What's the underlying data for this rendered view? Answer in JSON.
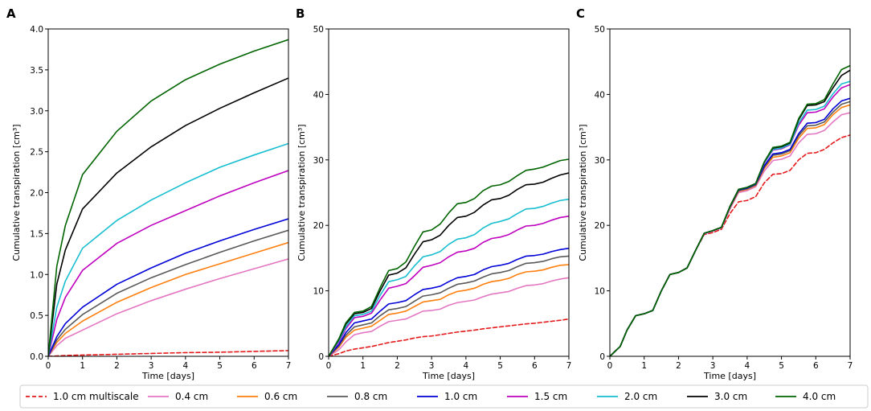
{
  "chart_data": [
    {
      "panel": "A",
      "type": "line",
      "xlabel": "Time [days]",
      "ylabel": "Cumulative transpiration [cm³]",
      "xlim": [
        0,
        7
      ],
      "ylim": [
        0,
        4.0
      ],
      "xticks": [
        "0",
        "1",
        "2",
        "3",
        "4",
        "5",
        "6",
        "7"
      ],
      "yticks": [
        "0.0",
        "0.5",
        "1.0",
        "1.5",
        "2.0",
        "2.5",
        "3.0",
        "3.5",
        "4.0"
      ],
      "x": [
        0,
        0.25,
        0.5,
        1,
        2,
        3,
        4,
        5,
        6,
        7
      ],
      "series": [
        {
          "name": "1.0 cm multiscale",
          "values": [
            0,
            0.005,
            0.01,
            0.015,
            0.025,
            0.035,
            0.045,
            0.05,
            0.06,
            0.07
          ]
        },
        {
          "name": "0.4 cm",
          "values": [
            0,
            0.13,
            0.22,
            0.32,
            0.52,
            0.68,
            0.82,
            0.95,
            1.07,
            1.19
          ]
        },
        {
          "name": "0.6 cm",
          "values": [
            0,
            0.17,
            0.28,
            0.43,
            0.66,
            0.84,
            1.0,
            1.13,
            1.26,
            1.39
          ]
        },
        {
          "name": "0.8 cm",
          "values": [
            0,
            0.2,
            0.33,
            0.51,
            0.77,
            0.96,
            1.12,
            1.27,
            1.41,
            1.54
          ]
        },
        {
          "name": "1.0 cm",
          "values": [
            0,
            0.24,
            0.4,
            0.6,
            0.88,
            1.08,
            1.26,
            1.41,
            1.55,
            1.68
          ]
        },
        {
          "name": "1.5 cm",
          "values": [
            0,
            0.45,
            0.72,
            1.05,
            1.38,
            1.6,
            1.78,
            1.96,
            2.12,
            2.27
          ]
        },
        {
          "name": "2.0 cm",
          "values": [
            0,
            0.6,
            0.92,
            1.32,
            1.66,
            1.91,
            2.12,
            2.31,
            2.46,
            2.6
          ]
        },
        {
          "name": "3.0 cm",
          "values": [
            0,
            0.88,
            1.3,
            1.8,
            2.24,
            2.56,
            2.82,
            3.03,
            3.22,
            3.4
          ]
        },
        {
          "name": "4.0 cm",
          "values": [
            0,
            1.1,
            1.6,
            2.22,
            2.75,
            3.12,
            3.38,
            3.57,
            3.73,
            3.87
          ]
        }
      ]
    },
    {
      "panel": "B",
      "type": "line",
      "xlabel": "Time [days]",
      "ylabel": "Cumulative transpiration [cm³]",
      "xlim": [
        0,
        7
      ],
      "ylim": [
        0,
        50
      ],
      "xticks": [
        "0",
        "1",
        "2",
        "3",
        "4",
        "5",
        "6",
        "7"
      ],
      "yticks": [
        "0",
        "10",
        "20",
        "30",
        "40",
        "50"
      ],
      "x": [
        0,
        0.3,
        0.5,
        0.75,
        1,
        1.25,
        1.5,
        1.75,
        2,
        2.25,
        2.5,
        2.75,
        3,
        3.25,
        3.5,
        3.75,
        4,
        4.25,
        4.5,
        4.75,
        5,
        5.25,
        5.5,
        5.75,
        6,
        6.25,
        6.5,
        6.75,
        7
      ],
      "series": [
        {
          "name": "1.0 cm multiscale",
          "values": [
            0,
            0.4,
            0.8,
            1.1,
            1.3,
            1.5,
            1.8,
            2.1,
            2.3,
            2.5,
            2.8,
            3.0,
            3.1,
            3.3,
            3.5,
            3.7,
            3.85,
            4.0,
            4.2,
            4.35,
            4.5,
            4.65,
            4.8,
            4.95,
            5.05,
            5.2,
            5.35,
            5.5,
            5.7
          ]
        },
        {
          "name": "0.4 cm",
          "values": [
            0,
            1.0,
            2.2,
            3.3,
            3.6,
            3.8,
            4.6,
            5.3,
            5.5,
            5.7,
            6.3,
            6.9,
            7.0,
            7.2,
            7.8,
            8.2,
            8.4,
            8.6,
            9.1,
            9.5,
            9.7,
            9.9,
            10.4,
            10.8,
            10.9,
            11.1,
            11.5,
            11.8,
            12.0
          ]
        },
        {
          "name": "0.6 cm",
          "values": [
            0,
            1.4,
            2.9,
            4.0,
            4.3,
            4.6,
            5.5,
            6.4,
            6.6,
            6.9,
            7.6,
            8.3,
            8.5,
            8.7,
            9.4,
            9.9,
            10.1,
            10.4,
            11.0,
            11.4,
            11.6,
            11.9,
            12.5,
            12.9,
            13.0,
            13.2,
            13.6,
            13.9,
            14.0
          ]
        },
        {
          "name": "0.8 cm",
          "values": [
            0,
            1.6,
            3.2,
            4.5,
            4.8,
            5.1,
            6.2,
            7.1,
            7.3,
            7.6,
            8.4,
            9.2,
            9.4,
            9.7,
            10.4,
            11.0,
            11.2,
            11.5,
            12.1,
            12.6,
            12.8,
            13.1,
            13.7,
            14.2,
            14.3,
            14.5,
            14.9,
            15.2,
            15.3
          ]
        },
        {
          "name": "1.0 cm",
          "values": [
            0,
            1.8,
            3.6,
            5.1,
            5.4,
            5.7,
            6.9,
            8.0,
            8.2,
            8.5,
            9.4,
            10.2,
            10.4,
            10.7,
            11.4,
            12.0,
            12.2,
            12.5,
            13.2,
            13.7,
            13.9,
            14.2,
            14.8,
            15.3,
            15.4,
            15.6,
            16.0,
            16.3,
            16.5
          ]
        },
        {
          "name": "1.5 cm",
          "values": [
            0,
            2.2,
            4.2,
            5.9,
            6.1,
            6.6,
            8.6,
            10.4,
            10.7,
            11.1,
            12.3,
            13.6,
            13.9,
            14.3,
            15.2,
            15.9,
            16.1,
            16.5,
            17.4,
            18.0,
            18.2,
            18.6,
            19.3,
            19.9,
            20.0,
            20.3,
            20.8,
            21.2,
            21.4
          ]
        },
        {
          "name": "2.0 cm",
          "values": [
            0,
            2.4,
            4.5,
            6.2,
            6.4,
            6.9,
            9.3,
            11.4,
            11.7,
            12.2,
            13.8,
            15.2,
            15.5,
            16.0,
            17.1,
            17.9,
            18.1,
            18.6,
            19.6,
            20.3,
            20.6,
            21.0,
            21.8,
            22.5,
            22.6,
            22.9,
            23.4,
            23.8,
            24.0
          ]
        },
        {
          "name": "3.0 cm",
          "values": [
            0,
            2.6,
            4.9,
            6.5,
            6.7,
            7.3,
            10.0,
            12.4,
            12.7,
            13.5,
            15.6,
            17.5,
            17.8,
            18.5,
            20.0,
            21.2,
            21.4,
            22.0,
            23.1,
            23.9,
            24.1,
            24.6,
            25.5,
            26.2,
            26.3,
            26.6,
            27.2,
            27.7,
            28.0
          ]
        },
        {
          "name": "4.0 cm",
          "values": [
            0,
            2.7,
            5.1,
            6.7,
            6.9,
            7.6,
            10.5,
            13.1,
            13.4,
            14.4,
            16.8,
            19.0,
            19.3,
            20.2,
            21.9,
            23.3,
            23.5,
            24.1,
            25.3,
            26.0,
            26.2,
            26.7,
            27.6,
            28.4,
            28.6,
            28.9,
            29.4,
            29.9,
            30.1
          ]
        }
      ]
    },
    {
      "panel": "C",
      "type": "line",
      "xlabel": "Time [days]",
      "ylabel": "Cumulative transpiration [cm³]",
      "xlim": [
        0,
        7
      ],
      "ylim": [
        0,
        50
      ],
      "xticks": [
        "0",
        "1",
        "2",
        "3",
        "4",
        "5",
        "6",
        "7"
      ],
      "yticks": [
        "0",
        "10",
        "20",
        "30",
        "40",
        "50"
      ],
      "x": [
        0,
        0.3,
        0.5,
        0.75,
        1,
        1.25,
        1.5,
        1.75,
        2,
        2.25,
        2.5,
        2.75,
        3,
        3.25,
        3.5,
        3.75,
        4,
        4.25,
        4.5,
        4.75,
        5,
        5.25,
        5.5,
        5.75,
        6,
        6.25,
        6.5,
        6.75,
        7
      ],
      "series": [
        {
          "name": "1.0 cm multiscale",
          "values": [
            0,
            1.5,
            4.0,
            6.2,
            6.5,
            7.0,
            10.0,
            12.5,
            12.8,
            13.5,
            16.2,
            18.6,
            18.9,
            19.4,
            21.8,
            23.6,
            23.8,
            24.4,
            26.5,
            27.8,
            27.9,
            28.4,
            30.0,
            31.0,
            31.1,
            31.6,
            32.6,
            33.4,
            33.8
          ]
        },
        {
          "name": "0.4 cm",
          "values": [
            0,
            1.5,
            4.0,
            6.2,
            6.5,
            7.0,
            10.0,
            12.5,
            12.8,
            13.5,
            16.2,
            18.7,
            19.1,
            19.6,
            22.5,
            25.0,
            25.3,
            25.9,
            28.3,
            29.9,
            30.1,
            30.6,
            32.6,
            33.9,
            34.0,
            34.5,
            35.8,
            36.9,
            37.2
          ]
        },
        {
          "name": "0.6 cm",
          "values": [
            0,
            1.5,
            4.0,
            6.2,
            6.5,
            7.0,
            10.0,
            12.5,
            12.8,
            13.5,
            16.2,
            18.8,
            19.2,
            19.7,
            22.7,
            25.2,
            25.5,
            26.1,
            28.7,
            30.4,
            30.6,
            31.1,
            33.3,
            34.8,
            34.9,
            35.4,
            36.9,
            38.0,
            38.4
          ]
        },
        {
          "name": "0.8 cm",
          "values": [
            0,
            1.5,
            4.0,
            6.2,
            6.5,
            7.0,
            10.0,
            12.5,
            12.8,
            13.5,
            16.2,
            18.8,
            19.2,
            19.7,
            22.8,
            25.3,
            25.6,
            26.2,
            28.9,
            30.7,
            30.9,
            31.4,
            33.7,
            35.2,
            35.3,
            35.8,
            37.3,
            38.5,
            38.9
          ]
        },
        {
          "name": "1.0 cm",
          "values": [
            0,
            1.5,
            4.0,
            6.2,
            6.5,
            7.0,
            10.0,
            12.5,
            12.8,
            13.5,
            16.2,
            18.8,
            19.2,
            19.7,
            22.8,
            25.4,
            25.7,
            26.3,
            29.1,
            30.9,
            31.1,
            31.6,
            34.0,
            35.6,
            35.7,
            36.2,
            37.8,
            39.0,
            39.4
          ]
        },
        {
          "name": "1.5 cm",
          "values": [
            0,
            1.5,
            4.0,
            6.2,
            6.5,
            7.0,
            10.0,
            12.5,
            12.8,
            13.5,
            16.2,
            18.8,
            19.2,
            19.7,
            22.9,
            25.5,
            25.8,
            26.4,
            29.5,
            31.5,
            31.7,
            32.3,
            35.3,
            37.2,
            37.3,
            37.8,
            39.6,
            41.0,
            41.5
          ]
        },
        {
          "name": "2.0 cm",
          "values": [
            0,
            1.5,
            4.0,
            6.2,
            6.5,
            7.0,
            10.0,
            12.5,
            12.8,
            13.5,
            16.2,
            18.8,
            19.2,
            19.7,
            22.9,
            25.5,
            25.8,
            26.4,
            29.6,
            31.6,
            31.8,
            32.4,
            35.6,
            37.6,
            37.7,
            38.2,
            40.1,
            41.6,
            42.0
          ]
        },
        {
          "name": "3.0 cm",
          "values": [
            0,
            1.5,
            4.0,
            6.2,
            6.5,
            7.0,
            10.0,
            12.5,
            12.8,
            13.5,
            16.2,
            18.8,
            19.2,
            19.7,
            22.9,
            25.5,
            25.8,
            26.4,
            29.7,
            31.8,
            32.0,
            32.6,
            36.1,
            38.3,
            38.4,
            38.9,
            41.0,
            42.9,
            43.7
          ]
        },
        {
          "name": "4.0 cm",
          "values": [
            0,
            1.5,
            4.0,
            6.2,
            6.5,
            7.0,
            10.0,
            12.5,
            12.8,
            13.5,
            16.2,
            18.8,
            19.2,
            19.7,
            22.9,
            25.5,
            25.8,
            26.4,
            29.7,
            31.9,
            32.1,
            32.7,
            36.3,
            38.5,
            38.6,
            39.2,
            41.6,
            43.8,
            44.4
          ]
        }
      ]
    }
  ],
  "legend": {
    "placement": "bottom",
    "entries": [
      {
        "label": "1.0 cm multiscale",
        "color": "#e41a1c",
        "dashed": true
      },
      {
        "label": "0.4 cm",
        "color": "#e377c2",
        "dashed": false
      },
      {
        "label": "0.6 cm",
        "color": "#ff7f0e",
        "dashed": false
      },
      {
        "label": "0.8 cm",
        "color": "#595959",
        "dashed": false
      },
      {
        "label": "1.0 cm",
        "color": "#0000d6",
        "dashed": false
      },
      {
        "label": "1.5 cm",
        "color": "#bf00bf",
        "dashed": false
      },
      {
        "label": "2.0 cm",
        "color": "#17becf",
        "dashed": false
      },
      {
        "label": "3.0 cm",
        "color": "#000000",
        "dashed": false
      },
      {
        "label": "4.0 cm",
        "color": "#006400",
        "dashed": false
      }
    ]
  }
}
